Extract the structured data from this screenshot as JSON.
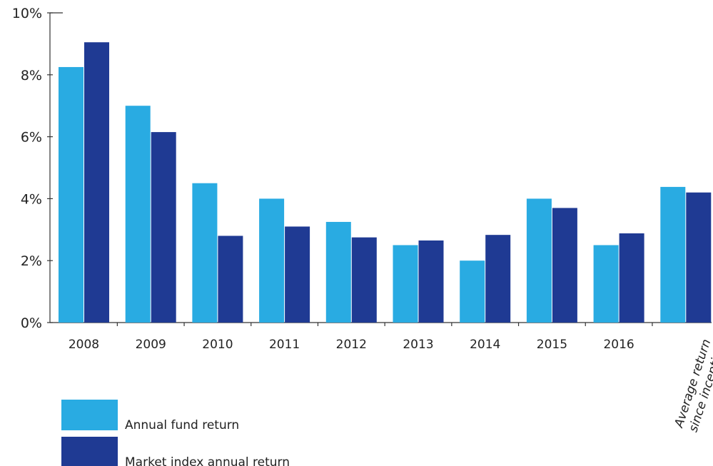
{
  "chart_data": {
    "type": "bar",
    "categories": [
      "2008",
      "2009",
      "2010",
      "2011",
      "2012",
      "2013",
      "2014",
      "2015",
      "2016",
      "Average return since inception"
    ],
    "category_lines": [
      [
        "2008"
      ],
      [
        "2009"
      ],
      [
        "2010"
      ],
      [
        "2011"
      ],
      [
        "2012"
      ],
      [
        "2013"
      ],
      [
        "2014"
      ],
      [
        "2015"
      ],
      [
        "2016"
      ],
      [
        "Average return",
        "since inception"
      ]
    ],
    "series": [
      {
        "name": "Annual fund return",
        "color": "#29abe2",
        "values": [
          8.25,
          7.0,
          4.5,
          4.0,
          3.25,
          2.5,
          2.0,
          4.0,
          2.5,
          4.38
        ]
      },
      {
        "name": "Market index annual return",
        "color": "#1f3a93",
        "values": [
          9.05,
          6.15,
          2.8,
          3.1,
          2.75,
          2.65,
          2.83,
          3.7,
          2.88,
          4.2
        ]
      }
    ],
    "yticks": [
      "0%",
      "2%",
      "4%",
      "6%",
      "8%",
      "10%"
    ],
    "ylim": [
      0,
      10
    ],
    "title": "",
    "xlabel": "",
    "ylabel": "",
    "grid": false,
    "legend_position": "bottom-left"
  }
}
